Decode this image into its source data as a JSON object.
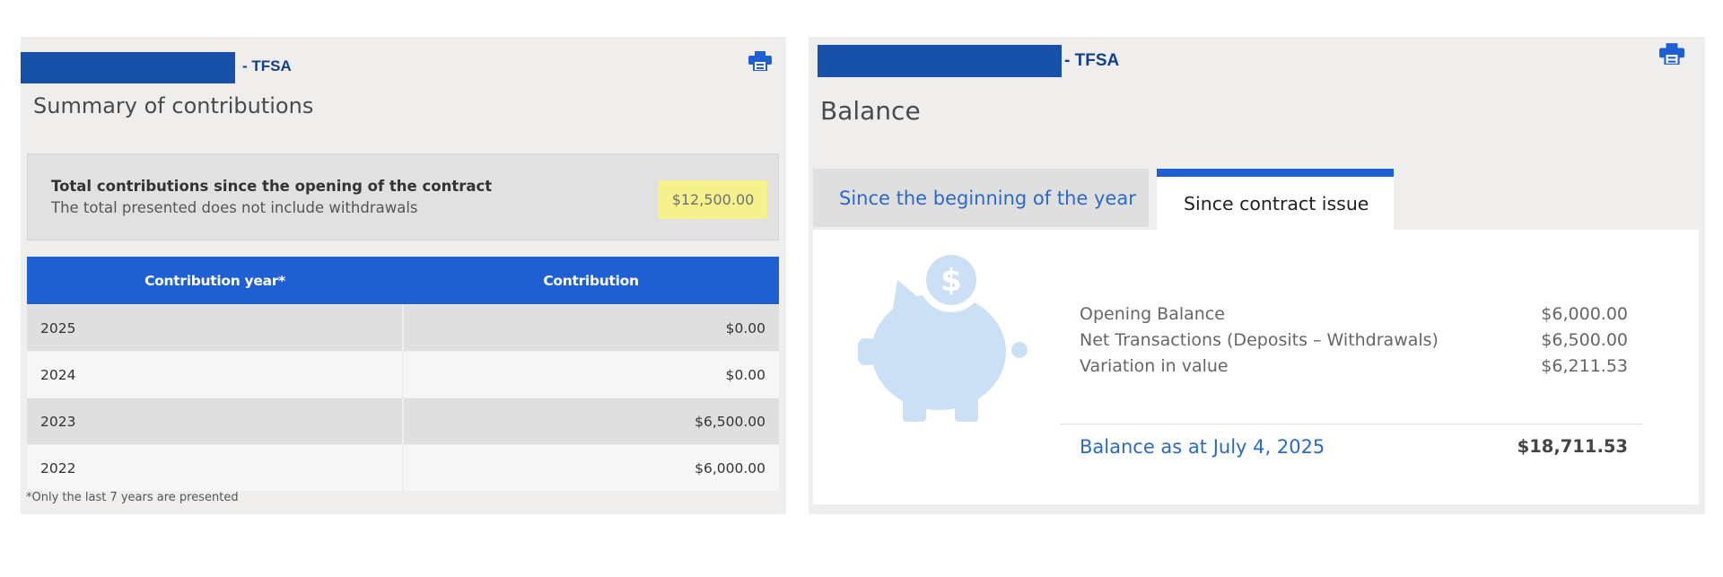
{
  "colors": {
    "redaction": "#1650a8",
    "accent_blue": "#1f5fd4",
    "link_blue": "#2b69c8",
    "highlight": "#f5f18c",
    "panel_bg": "#efeeed"
  },
  "left_panel": {
    "account_suffix": "- TFSA",
    "print_icon": "printer-icon",
    "title": "Summary of contributions",
    "summary": {
      "label": "Total contributions since the opening of the contract",
      "note": "The total presented does not include withdrawals",
      "value": "$12,500.00"
    },
    "table": {
      "headers": [
        "Contribution year*",
        "Contribution"
      ],
      "rows": [
        {
          "year": "2025",
          "contribution": "$0.00"
        },
        {
          "year": "2024",
          "contribution": "$0.00"
        },
        {
          "year": "2023",
          "contribution": "$6,500.00"
        },
        {
          "year": "2022",
          "contribution": "$6,000.00"
        }
      ]
    },
    "footnote": "*Only the last 7 years are presented"
  },
  "right_panel": {
    "account_suffix": "- TFSA",
    "print_icon": "printer-icon",
    "title": "Balance",
    "tabs": [
      {
        "label": "Since the beginning of the year",
        "active": false
      },
      {
        "label": "Since contract issue",
        "active": true
      }
    ],
    "illustration": "piggy-bank-icon",
    "rows": [
      {
        "label": "Opening Balance",
        "value": "$6,000.00"
      },
      {
        "label": "Net Transactions (Deposits – Withdrawals)",
        "value": "$6,500.00"
      },
      {
        "label": "Variation in value",
        "value": "$6,211.53"
      }
    ],
    "balance": {
      "label": "Balance as at July 4, 2025",
      "value": "$18,711.53"
    }
  }
}
